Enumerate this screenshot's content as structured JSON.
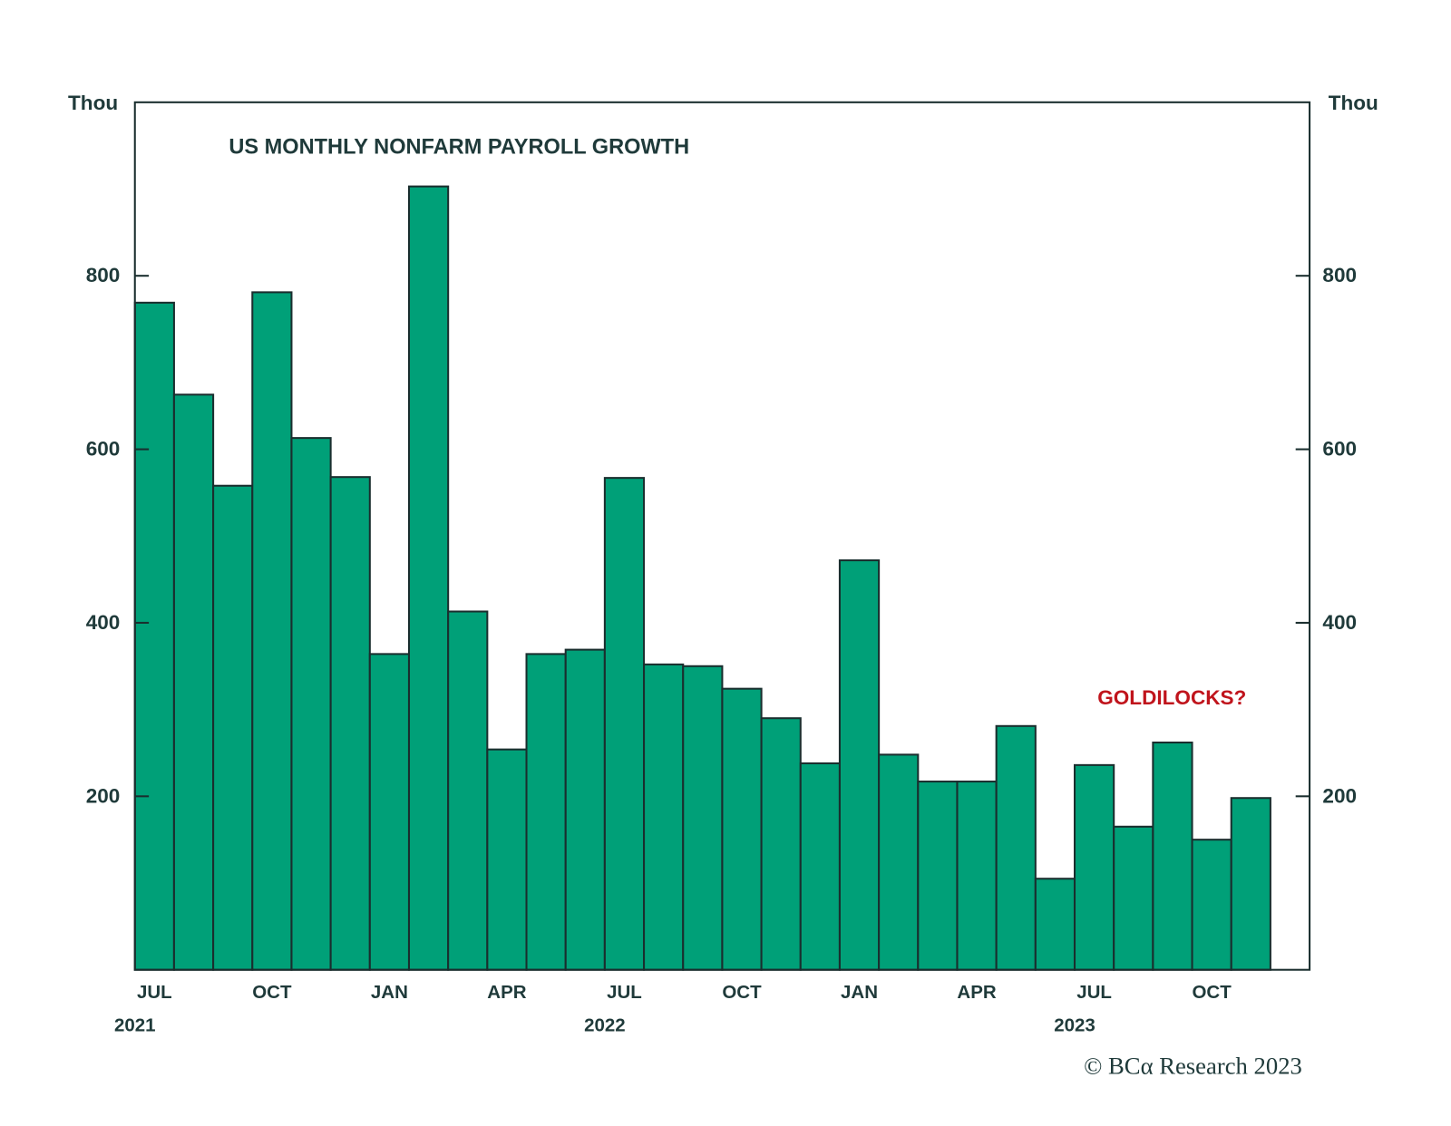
{
  "chart_data": {
    "type": "bar",
    "title": "US MONTHLY NONFARM PAYROLL GROWTH",
    "y_label": "Thou",
    "y2_label": "Thou",
    "annotation": "GOLDILOCKS?",
    "source": "© BCα Research 2023",
    "categories": [
      "JUL",
      null,
      null,
      "OCT",
      null,
      null,
      "JAN",
      null,
      null,
      "APR",
      null,
      null,
      "JUL",
      null,
      null,
      "OCT",
      null,
      null,
      "JAN",
      null,
      null,
      "APR",
      null,
      null,
      "JUL",
      null,
      null,
      "OCT",
      null,
      null
    ],
    "category_years": [
      "2021",
      null,
      null,
      null,
      null,
      null,
      null,
      null,
      null,
      null,
      null,
      null,
      "2022",
      null,
      null,
      null,
      null,
      null,
      null,
      null,
      null,
      null,
      null,
      null,
      "2023",
      null,
      null,
      null,
      null,
      null
    ],
    "values": [
      769,
      663,
      558,
      781,
      613,
      568,
      364,
      903,
      413,
      254,
      364,
      369,
      567,
      352,
      350,
      324,
      290,
      238,
      472,
      248,
      217,
      217,
      281,
      105,
      236,
      165,
      262,
      150,
      198,
      null
    ],
    "color": "#00a078",
    "edge_color": "#1a2e2e",
    "annotation_color": "#c0141c",
    "ylim": [
      0,
      1000
    ],
    "yticks": [
      200,
      400,
      600,
      800
    ],
    "y2lim": [
      0,
      1000
    ],
    "y2ticks": [
      200,
      400,
      600,
      800
    ]
  }
}
